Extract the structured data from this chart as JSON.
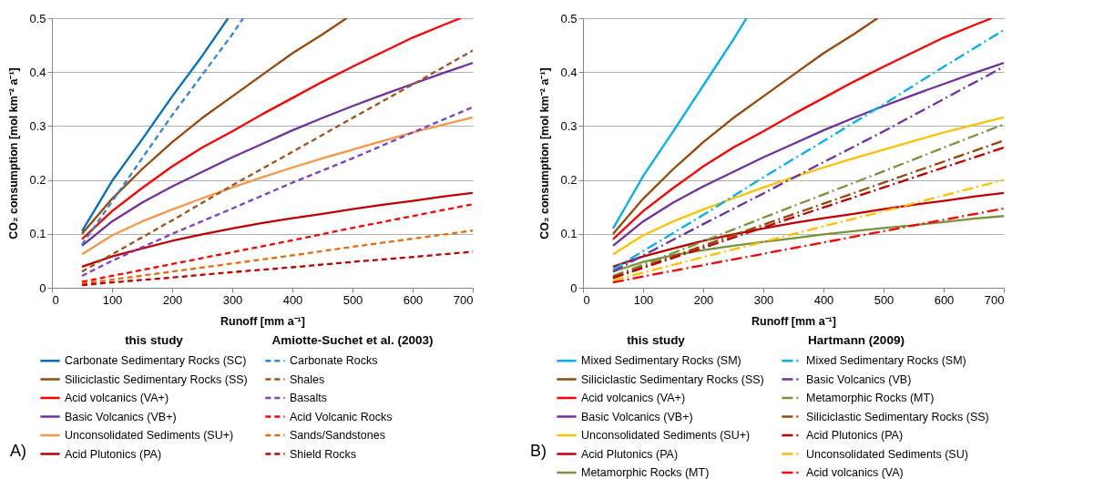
{
  "chart_data": [
    {
      "type": "line",
      "xlabel": "Runoff [mm a⁻¹]",
      "ylabel": "CO₂ consumption [mol km⁻² a⁻¹]",
      "xlim": [
        0,
        700
      ],
      "ylim": [
        0,
        0.5
      ],
      "xticks": [
        0,
        100,
        200,
        300,
        400,
        500,
        600,
        700
      ],
      "yticks": [
        0,
        0.1,
        0.2,
        0.3,
        0.4,
        0.5
      ],
      "grid": "y",
      "legend": "bottom",
      "annotations": [
        "this study",
        "Amiotte-Suchet  et al. (2003)",
        "A)"
      ],
      "x": [
        50,
        100,
        150,
        200,
        250,
        300,
        350,
        400,
        450,
        500,
        550,
        600,
        650,
        700
      ],
      "series": [
        {
          "name": "Carbonate Sedimentary Rocks (SC)",
          "color": "#0070c0",
          "line_style": "solid",
          "x": [
            50,
            100,
            150,
            200,
            250,
            293
          ],
          "values": [
            0.105,
            0.198,
            0.275,
            0.355,
            0.43,
            0.5
          ]
        },
        {
          "name": "Siliciclastic Sedimentary Rocks (SS)",
          "color": "#984807",
          "line_style": "solid",
          "x": [
            50,
            100,
            150,
            200,
            250,
            300,
            350,
            400,
            450,
            490
          ],
          "values": [
            0.1,
            0.165,
            0.22,
            0.27,
            0.315,
            0.355,
            0.395,
            0.435,
            0.47,
            0.5
          ]
        },
        {
          "name": "Acid volcanics (VA+)",
          "color": "#ff0000",
          "line_style": "solid",
          "x": [
            50,
            100,
            150,
            200,
            250,
            300,
            350,
            400,
            450,
            500,
            550,
            600,
            650,
            680
          ],
          "values": [
            0.09,
            0.142,
            0.185,
            0.225,
            0.26,
            0.29,
            0.322,
            0.352,
            0.382,
            0.41,
            0.437,
            0.464,
            0.487,
            0.5
          ]
        },
        {
          "name": "Basic Volcanics (VB+)",
          "color": "#7030a0",
          "line_style": "solid",
          "values": [
            0.078,
            0.123,
            0.158,
            0.188,
            0.215,
            0.242,
            0.267,
            0.292,
            0.315,
            0.337,
            0.358,
            0.378,
            0.398,
            0.417
          ]
        },
        {
          "name": "Unconsolidated Sediments (SU+)",
          "color": "#f79646",
          "line_style": "solid",
          "values": [
            0.062,
            0.097,
            0.123,
            0.145,
            0.166,
            0.186,
            0.205,
            0.223,
            0.24,
            0.256,
            0.272,
            0.288,
            0.302,
            0.316
          ]
        },
        {
          "name": "Acid Plutonics (PA)",
          "color": "#c00000",
          "line_style": "solid",
          "values": [
            0.039,
            0.058,
            0.073,
            0.087,
            0.099,
            0.11,
            0.12,
            0.129,
            0.137,
            0.146,
            0.154,
            0.161,
            0.169,
            0.176
          ]
        },
        {
          "name": "Carbonate Rocks",
          "color": "#2e86d4",
          "line_style": "dashed",
          "x": [
            50,
            100,
            150,
            200,
            250,
            300,
            318
          ],
          "values": [
            0.08,
            0.16,
            0.24,
            0.32,
            0.395,
            0.47,
            0.5
          ]
        },
        {
          "name": "Shales",
          "color": "#a0521a",
          "line_style": "dashed",
          "x": [
            50,
            100,
            200,
            300,
            400,
            500,
            600,
            700
          ],
          "values": [
            0.03,
            0.062,
            0.125,
            0.19,
            0.252,
            0.315,
            0.377,
            0.44
          ]
        },
        {
          "name": "Basalts",
          "color": "#7f3fbf",
          "line_style": "dashed",
          "x": [
            50,
            100,
            200,
            300,
            400,
            500,
            600,
            700
          ],
          "values": [
            0.022,
            0.05,
            0.1,
            0.147,
            0.195,
            0.24,
            0.288,
            0.335
          ]
        },
        {
          "name": "Acid Volcanic Rocks",
          "color": "#ff0000",
          "line_style": "dashed",
          "x": [
            50,
            100,
            200,
            300,
            400,
            500,
            600,
            700
          ],
          "values": [
            0.011,
            0.022,
            0.044,
            0.066,
            0.088,
            0.111,
            0.133,
            0.155
          ]
        },
        {
          "name": "Sands/Sandstones",
          "color": "#e46c0a",
          "line_style": "dashed",
          "x": [
            50,
            100,
            200,
            300,
            400,
            500,
            600,
            700
          ],
          "values": [
            0.008,
            0.015,
            0.03,
            0.045,
            0.06,
            0.076,
            0.091,
            0.106
          ]
        },
        {
          "name": "Shield Rocks",
          "color": "#c00000",
          "line_style": "dashed",
          "x": [
            50,
            100,
            200,
            300,
            400,
            500,
            600,
            700
          ],
          "values": [
            0.005,
            0.01,
            0.019,
            0.029,
            0.038,
            0.048,
            0.057,
            0.067
          ]
        }
      ]
    },
    {
      "type": "line",
      "xlabel": "Runoff [mm a⁻¹]",
      "ylabel": "CO₂ consumption [mol km⁻² a⁻¹]",
      "xlim": [
        0,
        700
      ],
      "ylim": [
        0,
        0.5
      ],
      "xticks": [
        0,
        100,
        200,
        300,
        400,
        500,
        600,
        700
      ],
      "yticks": [
        0,
        0.1,
        0.2,
        0.3,
        0.4,
        0.5
      ],
      "grid": "y",
      "legend": "bottom",
      "annotations": [
        "this study",
        "Hartmann (2009)",
        "B)"
      ],
      "x": [
        50,
        100,
        150,
        200,
        250,
        300,
        350,
        400,
        450,
        500,
        550,
        600,
        650,
        700
      ],
      "series": [
        {
          "name": "Mixed Sedimentary Rocks (SM)",
          "color": "#00b0f0",
          "line_style": "solid",
          "x": [
            50,
            100,
            150,
            200,
            250,
            272
          ],
          "values": [
            0.11,
            0.207,
            0.29,
            0.375,
            0.46,
            0.5
          ]
        },
        {
          "name": "Siliciclastic Sedimentary Rocks (SS)",
          "color": "#984807",
          "line_style": "solid",
          "x": [
            50,
            100,
            150,
            200,
            250,
            300,
            350,
            400,
            450,
            490
          ],
          "values": [
            0.1,
            0.165,
            0.22,
            0.27,
            0.315,
            0.355,
            0.395,
            0.435,
            0.47,
            0.5
          ]
        },
        {
          "name": "Acid volcanics (VA+)",
          "color": "#ff0000",
          "line_style": "solid",
          "x": [
            50,
            100,
            150,
            200,
            250,
            300,
            350,
            400,
            450,
            500,
            550,
            600,
            650,
            680
          ],
          "values": [
            0.09,
            0.142,
            0.185,
            0.225,
            0.26,
            0.29,
            0.322,
            0.352,
            0.382,
            0.41,
            0.437,
            0.464,
            0.487,
            0.5
          ]
        },
        {
          "name": "Basic Volcanics (VB+)",
          "color": "#7030a0",
          "line_style": "solid",
          "values": [
            0.078,
            0.123,
            0.158,
            0.188,
            0.215,
            0.242,
            0.267,
            0.292,
            0.315,
            0.337,
            0.358,
            0.378,
            0.398,
            0.417
          ]
        },
        {
          "name": "Unconsolidated Sediments (SU+)",
          "color": "#ffc000",
          "line_style": "solid",
          "values": [
            0.062,
            0.097,
            0.123,
            0.145,
            0.166,
            0.186,
            0.205,
            0.223,
            0.24,
            0.256,
            0.272,
            0.288,
            0.302,
            0.316
          ]
        },
        {
          "name": "Acid Plutonics (PA)",
          "color": "#c00000",
          "line_style": "solid",
          "values": [
            0.039,
            0.058,
            0.073,
            0.087,
            0.099,
            0.11,
            0.12,
            0.129,
            0.137,
            0.146,
            0.154,
            0.161,
            0.169,
            0.176
          ]
        },
        {
          "name": "Metamorphic Rocks (MT)",
          "color": "#77933c",
          "line_style": "solid",
          "values": [
            0.03,
            0.048,
            0.06,
            0.07,
            0.078,
            0.085,
            0.092,
            0.099,
            0.105,
            0.111,
            0.116,
            0.122,
            0.128,
            0.133
          ]
        },
        {
          "name": "Mixed Sedimentary Rocks (SM)",
          "color": "#00b0f0",
          "line_style": "dashdot",
          "x": [
            50,
            100,
            200,
            300,
            400,
            500,
            600,
            700
          ],
          "values": [
            0.034,
            0.068,
            0.135,
            0.205,
            0.272,
            0.34,
            0.41,
            0.478
          ]
        },
        {
          "name": "Basic Volcanics (VB)",
          "color": "#7030a0",
          "line_style": "dashdot",
          "x": [
            50,
            100,
            200,
            300,
            400,
            500,
            600,
            700
          ],
          "values": [
            0.03,
            0.06,
            0.118,
            0.175,
            0.233,
            0.29,
            0.35,
            0.41
          ]
        },
        {
          "name": "Metamorphic Rocks (MT)",
          "color": "#77933c",
          "line_style": "dashdot",
          "x": [
            50,
            100,
            200,
            300,
            400,
            500,
            600,
            700
          ],
          "values": [
            0.022,
            0.043,
            0.086,
            0.13,
            0.173,
            0.216,
            0.26,
            0.303
          ]
        },
        {
          "name": "Siliciclastic Sedimentary Rocks (SS)",
          "color": "#984807",
          "line_style": "dashdot",
          "x": [
            50,
            100,
            200,
            300,
            400,
            500,
            600,
            700
          ],
          "values": [
            0.02,
            0.039,
            0.078,
            0.117,
            0.156,
            0.195,
            0.234,
            0.273
          ]
        },
        {
          "name": "Acid Plutonics (PA)",
          "color": "#c00000",
          "line_style": "dashdot",
          "x": [
            50,
            100,
            200,
            300,
            400,
            500,
            600,
            700
          ],
          "values": [
            0.018,
            0.037,
            0.074,
            0.112,
            0.149,
            0.186,
            0.223,
            0.26
          ]
        },
        {
          "name": "Unconsolidated Sediments (SU)",
          "color": "#ffc000",
          "line_style": "dashdot",
          "x": [
            50,
            100,
            200,
            300,
            400,
            500,
            600,
            700
          ],
          "values": [
            0.014,
            0.028,
            0.057,
            0.085,
            0.114,
            0.142,
            0.171,
            0.2
          ]
        },
        {
          "name": "Acid volcanics (VA)",
          "color": "#ff0000",
          "line_style": "dashdot",
          "x": [
            50,
            100,
            200,
            300,
            400,
            500,
            600,
            700
          ],
          "values": [
            0.01,
            0.021,
            0.042,
            0.063,
            0.084,
            0.105,
            0.126,
            0.147
          ]
        }
      ]
    }
  ]
}
